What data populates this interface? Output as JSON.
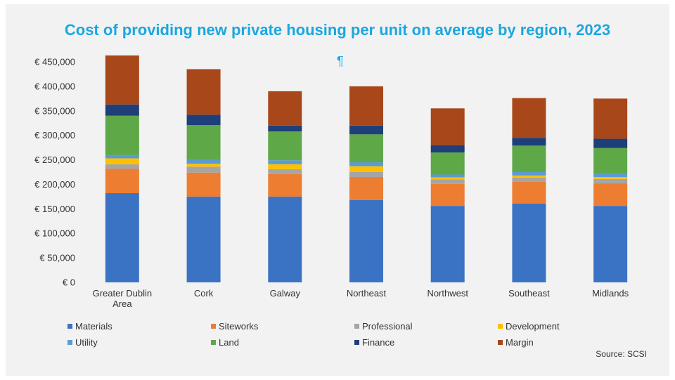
{
  "chart_data": {
    "type": "bar",
    "stacked": true,
    "title": "Cost of providing new private housing per unit on average by region, 2023",
    "pilcrow": "¶",
    "categories": [
      "Greater Dublin Area",
      "Cork",
      "Galway",
      "Northeast",
      "Northwest",
      "Southeast",
      "Midlands"
    ],
    "y_tick_labels": [
      "€ 0",
      "€ 50,000",
      "€ 100,000",
      "€ 150,000",
      "€ 200,000",
      "€ 250,000",
      "€ 300,000",
      "€ 350,000",
      "€ 400,000",
      "€ 450,000"
    ],
    "ylim": [
      0,
      450000
    ],
    "series": [
      {
        "name": "Materials",
        "color": "#3b73c4",
        "values": [
          182000,
          175000,
          175000,
          168000,
          156000,
          161000,
          156000
        ]
      },
      {
        "name": "Siteworks",
        "color": "#ed7d31",
        "values": [
          50000,
          49000,
          46000,
          47000,
          45000,
          44000,
          46000
        ]
      },
      {
        "name": "Professional",
        "color": "#a5a5a5",
        "values": [
          9000,
          12000,
          10000,
          10000,
          9000,
          9000,
          9000
        ]
      },
      {
        "name": "Development",
        "color": "#ffc000",
        "values": [
          12000,
          6000,
          10000,
          12000,
          4000,
          4000,
          4000
        ]
      },
      {
        "name": "Utility",
        "color": "#5b9bd5",
        "values": [
          7000,
          8000,
          8000,
          8000,
          6000,
          7000,
          7000
        ]
      },
      {
        "name": "Land",
        "color": "#5ea848",
        "values": [
          80000,
          71000,
          59000,
          57000,
          45000,
          54000,
          52000
        ]
      },
      {
        "name": "Finance",
        "color": "#1f3f7a",
        "values": [
          23000,
          21000,
          12000,
          18000,
          15000,
          16000,
          19000
        ]
      },
      {
        "name": "Margin",
        "color": "#a8471a",
        "values": [
          100000,
          93000,
          70000,
          80000,
          75000,
          81000,
          82000
        ]
      }
    ],
    "legend_position": "bottom",
    "grid": false
  },
  "source": "Source: SCSI"
}
